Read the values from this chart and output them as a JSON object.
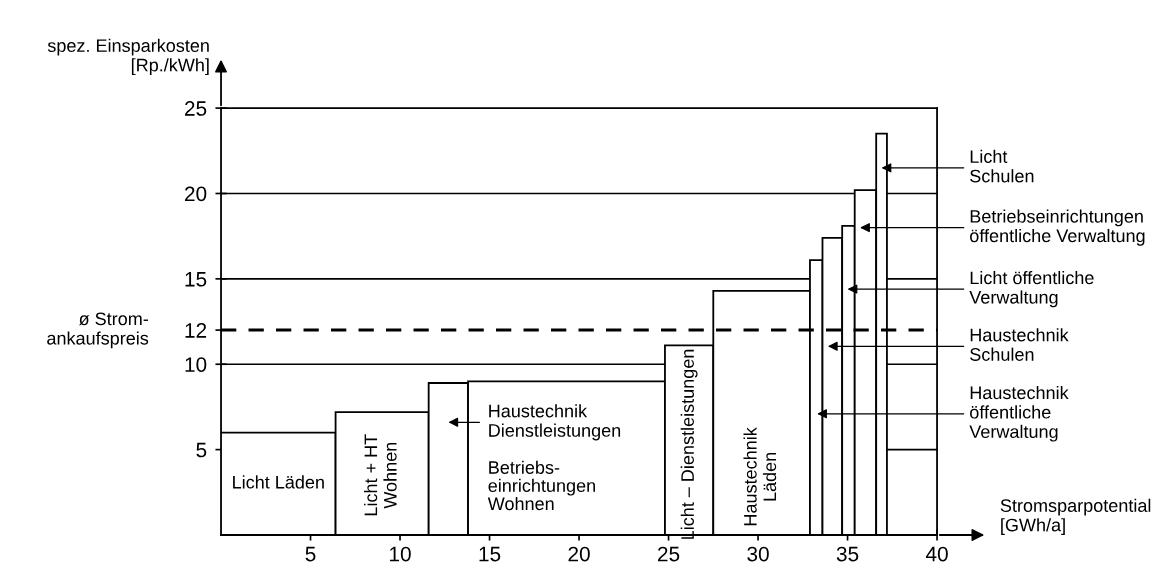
{
  "chart_data": {
    "type": "histogram",
    "xlabel": "Stromsparpotential\n[GWh/a]",
    "ylabel": "spez. Einsparkosten\n[Rp./kWh]",
    "bins": [
      0,
      6.4,
      11.6,
      13.8,
      24.8,
      27.5,
      32.9,
      33.6,
      34.7,
      35.4,
      36.6,
      37.2
    ],
    "values": [
      6.0,
      7.2,
      8.9,
      9.0,
      11.1,
      14.3,
      16.1,
      17.4,
      18.1,
      20.2,
      23.5
    ],
    "color": "#ffffff",
    "xlim": [
      0,
      40
    ],
    "ylim": [
      0,
      25
    ],
    "xticks": [
      5,
      10,
      15,
      20,
      25,
      30,
      35,
      40
    ],
    "yticks": [
      5,
      10,
      12,
      15,
      20,
      25
    ],
    "grid": "y",
    "ref_lines": [
      {
        "axis": "y",
        "value": 12,
        "label": "ø Strom-\nankaufspreis",
        "line_style": "dashed",
        "color": "#000000"
      }
    ],
    "annotations": [
      "Licht Läden",
      "Licht + HT\nWohnen",
      "Haustechnik\nDienstleistungen",
      "Betriebs-\neinrichtungen\nWohnen",
      "Licht – Dienstleistungen",
      "Haustechnik\nLäden",
      "Licht\nSchulen",
      {
        "text": "Betriebseinrichtungen\nöffentliche Verwaltung",
        "x": 35.7,
        "y": 18.0
      },
      {
        "text": "Licht öffentliche\nVerwaltung",
        "x": 35.0,
        "y": 14.4
      },
      {
        "text": "Haustechnik\nSchulen",
        "x": 33.9,
        "y": 11.05
      },
      {
        "text": "Haustechnik\nöffentliche\nVerwaltung",
        "x": 33.3,
        "y": 7.1
      }
    ]
  }
}
